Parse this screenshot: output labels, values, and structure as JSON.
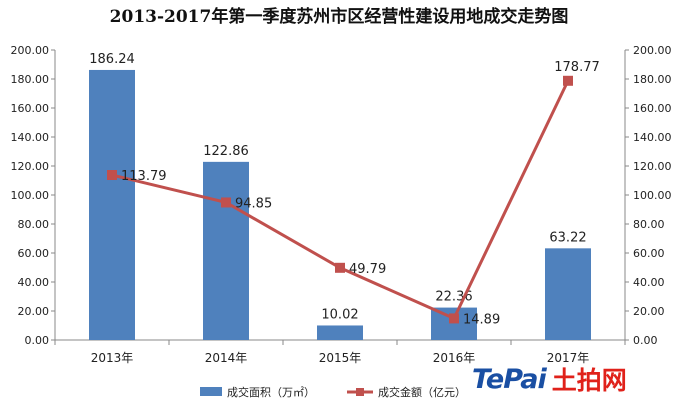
{
  "chart_data": {
    "type": "bar+line",
    "title": "2013-2017年第一季度苏州市区经营性建设用地成交走势图",
    "categories": [
      "2013年",
      "2014年",
      "2015年",
      "2016年",
      "2017年"
    ],
    "series": [
      {
        "name": "成交面积（万㎡）",
        "type": "bar",
        "axis": "left",
        "color": "#4f81bd",
        "values": [
          186.24,
          122.86,
          10.02,
          22.36,
          63.22
        ]
      },
      {
        "name": "成交金额（亿元）",
        "type": "line",
        "axis": "right",
        "color": "#c0504d",
        "values": [
          113.79,
          94.85,
          49.79,
          14.89,
          178.77
        ]
      }
    ],
    "y_left": {
      "min": 0,
      "max": 200,
      "step": 20,
      "ticks": [
        "0.00",
        "20.00",
        "40.00",
        "60.00",
        "80.00",
        "100.00",
        "120.00",
        "140.00",
        "160.00",
        "180.00",
        "200.00"
      ]
    },
    "y_right": {
      "min": 0,
      "max": 200,
      "step": 20,
      "ticks": [
        "0.00",
        "20.00",
        "40.00",
        "60.00",
        "80.00",
        "100.00",
        "120.00",
        "140.00",
        "160.00",
        "180.00",
        "200.00"
      ]
    },
    "bar_labels": [
      "186.24",
      "122.86",
      "10.02",
      "22.36",
      "63.22"
    ],
    "line_labels": [
      "113.79",
      "94.85",
      "49.79",
      "14.89",
      "178.77"
    ],
    "grid": false,
    "legend": "bottom"
  },
  "watermark": {
    "brand_latin": "TePai",
    "brand_cn": "土拍网"
  }
}
